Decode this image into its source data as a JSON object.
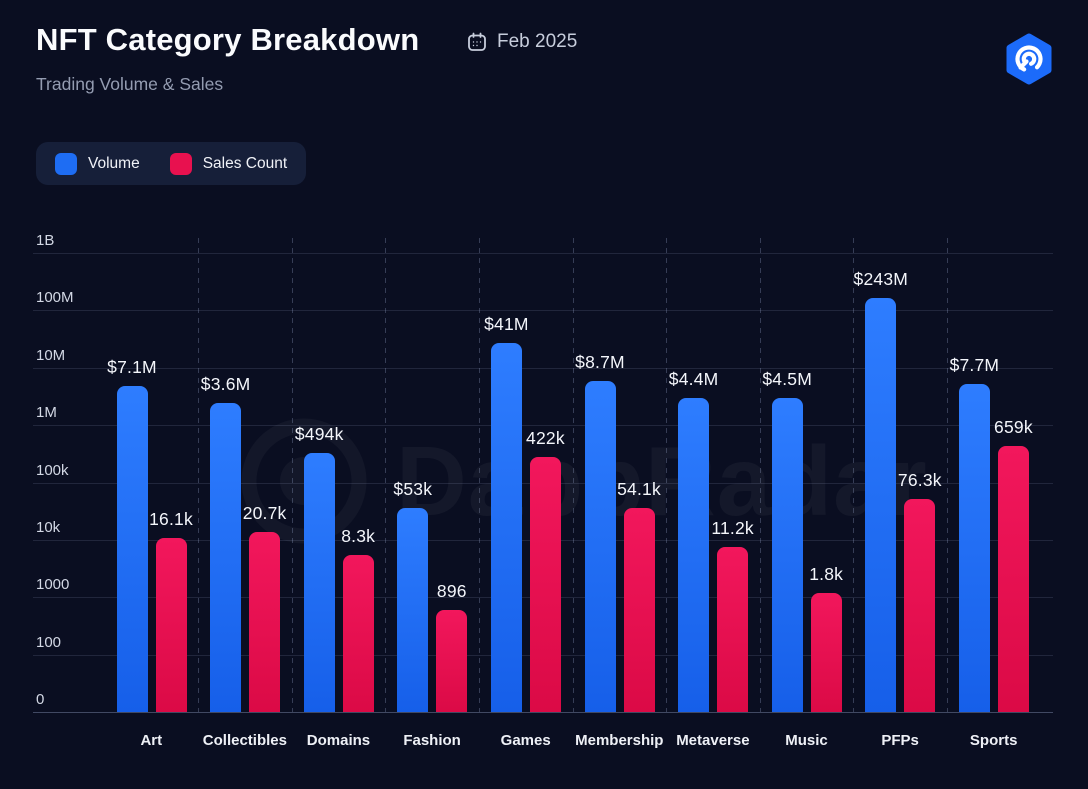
{
  "header": {
    "title": "NFT Category Breakdown",
    "period": "Feb 2025",
    "subtitle": "Trading Volume & Sales"
  },
  "legend": {
    "items": [
      {
        "label": "Volume",
        "color": "#1e6df3"
      },
      {
        "label": "Sales Count",
        "color": "#e8114f"
      }
    ]
  },
  "watermark": {
    "text": "DappRadar",
    "icon": "radar-ring-icon"
  },
  "logo": {
    "name": "dappradar-logo",
    "color": "#1c6bfa"
  },
  "icons": {
    "calendar": "calendar-icon"
  },
  "colors": {
    "background": "#0a0e21",
    "volume_bar_top": "#2e7dff",
    "volume_bar_bottom": "#165fe9",
    "sales_bar_top": "#f2175c",
    "sales_bar_bottom": "#db0a46"
  },
  "chart_data": {
    "type": "bar",
    "scale": "log",
    "title": "NFT Category Breakdown",
    "subtitle": "Trading Volume & Sales",
    "xlabel": "",
    "ylabel": "",
    "grid": "horizontal solid + vertical dashed group separators",
    "legend_position": "top-left",
    "y_ticks": [
      "1B",
      "100M",
      "10M",
      "1M",
      "100k",
      "10k",
      "1000",
      "100",
      "0"
    ],
    "ylim": [
      0,
      1000000000
    ],
    "categories": [
      "Art",
      "Collectibles",
      "Domains",
      "Fashion",
      "Games",
      "Membership",
      "Metaverse",
      "Music",
      "PFPs",
      "Sports"
    ],
    "series": [
      {
        "name": "Volume",
        "color": "#1e6df3",
        "color_top": "#2e7dff",
        "color_bottom": "#165fe9",
        "values": [
          7100000,
          3600000,
          494000,
          53000,
          41000000,
          8700000,
          4400000,
          4500000,
          243000000,
          7700000
        ],
        "labels": [
          "$7.1M",
          "$3.6M",
          "$494k",
          "$53k",
          "$41M",
          "$8.7M",
          "$4.4M",
          "$4.5M",
          "$243M",
          "$7.7M"
        ]
      },
      {
        "name": "Sales Count",
        "color": "#e8114f",
        "color_top": "#f2175c",
        "color_bottom": "#db0a46",
        "values": [
          16100,
          20700,
          8300,
          896,
          422000,
          54100,
          11200,
          1800,
          76300,
          659000
        ],
        "labels": [
          "16.1k",
          "20.7k",
          "8.3k",
          "896",
          "422k",
          "54.1k",
          "11.2k",
          "1.8k",
          "76.3k",
          "659k"
        ]
      }
    ]
  }
}
